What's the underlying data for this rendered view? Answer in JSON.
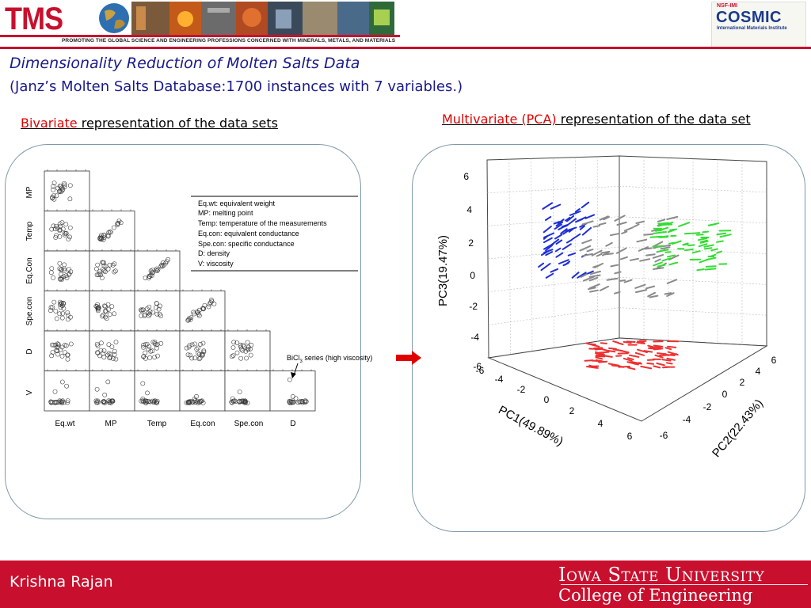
{
  "header": {
    "logo": "TMS",
    "tagline": "Promoting the global science and engineering professions concerned with minerals, metals, and materials",
    "partner_top": "NSF-IMI",
    "partner_name": "COSMIC",
    "partner_sub": "International Materials Institute"
  },
  "title": {
    "line1": "Dimensionality Reduction of Molten Salts Data",
    "line2": "(Janz’s Molten Salts Database:1700 instances with 7 variables.)"
  },
  "bivariate": {
    "heading_red": "Bivariate ",
    "heading_rest": "representation of the data sets",
    "row_labels": [
      "MP",
      "Temp",
      "Eq.Con",
      "Spe.con",
      "D",
      "V"
    ],
    "col_labels": [
      "Eq.wt",
      "MP",
      "Temp",
      "Eq.con",
      "Spe.con",
      "D"
    ],
    "legend": [
      "Eq.wt: equivalent weight",
      "MP: melting point",
      "Temp: temperature of the measurements",
      "Eq.con: equivalent conductance",
      "Spe.con: specific conductance",
      "D: density",
      "V: viscosity"
    ],
    "annotation_prefix": "BiCl",
    "annotation_sub": "3",
    "annotation_suffix": " series (high viscosity)"
  },
  "multivariate": {
    "heading_red": "Multivariate (PCA) ",
    "heading_rest": "representation of the data set",
    "z_label": "PC3(19.47%)",
    "x_label": "PC1(49.89%)",
    "y_label": "PC2(22.43%)",
    "z_ticks": [
      "6",
      "4",
      "2",
      "0",
      "-2",
      "-4",
      "-6"
    ],
    "x_ticks": [
      "-6",
      "-4",
      "-2",
      "0",
      "2",
      "4",
      "6"
    ],
    "y_ticks": [
      "-6",
      "-4",
      "-2",
      "0",
      "2",
      "4",
      "6"
    ],
    "cluster_colors": {
      "blue": "#1f2fd6",
      "gray": "#8a8a8a",
      "green": "#33dd33",
      "red": "#ee3030"
    }
  },
  "footer": {
    "name": "Krishna Rajan",
    "university": "Iowa State University",
    "college": "College of Engineering"
  },
  "colors": {
    "brand_red": "#c8102e",
    "title_blue": "#1a1a8c",
    "panel_border": "#7f99a8"
  }
}
